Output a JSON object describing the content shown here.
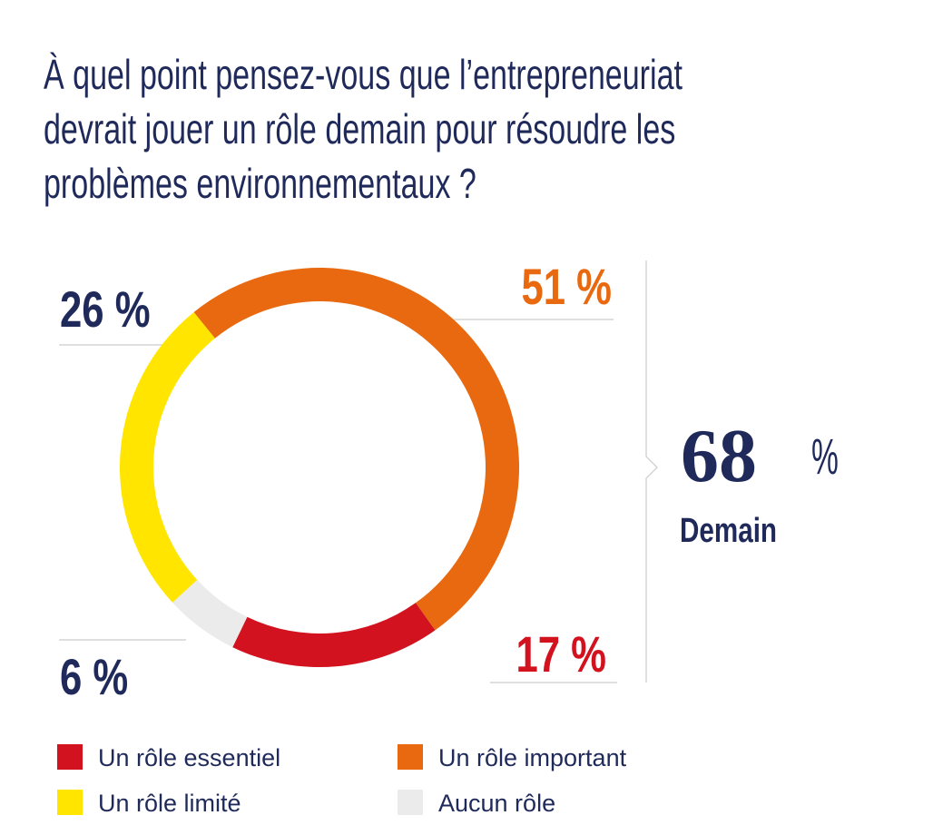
{
  "chart_data": {
    "type": "donut",
    "title": "À quel point pensez-vous que l’entrepreneuriat devrait jouer un rôle demain pour résoudre les problèmes environnementaux ?",
    "categories": [
      "Un rôle essentiel",
      "Un rôle important",
      "Un rôle limité",
      "Aucun rôle"
    ],
    "values": [
      17,
      51,
      26,
      6
    ],
    "value_labels": [
      "17 %",
      "51 %",
      "26 %",
      "6 %"
    ],
    "colors": [
      "#d2121f",
      "#e8690f",
      "#ffe500",
      "#ebebeb"
    ],
    "annotation": {
      "value": 68,
      "unit": "%",
      "label": "Demain"
    },
    "legend": true
  }
}
